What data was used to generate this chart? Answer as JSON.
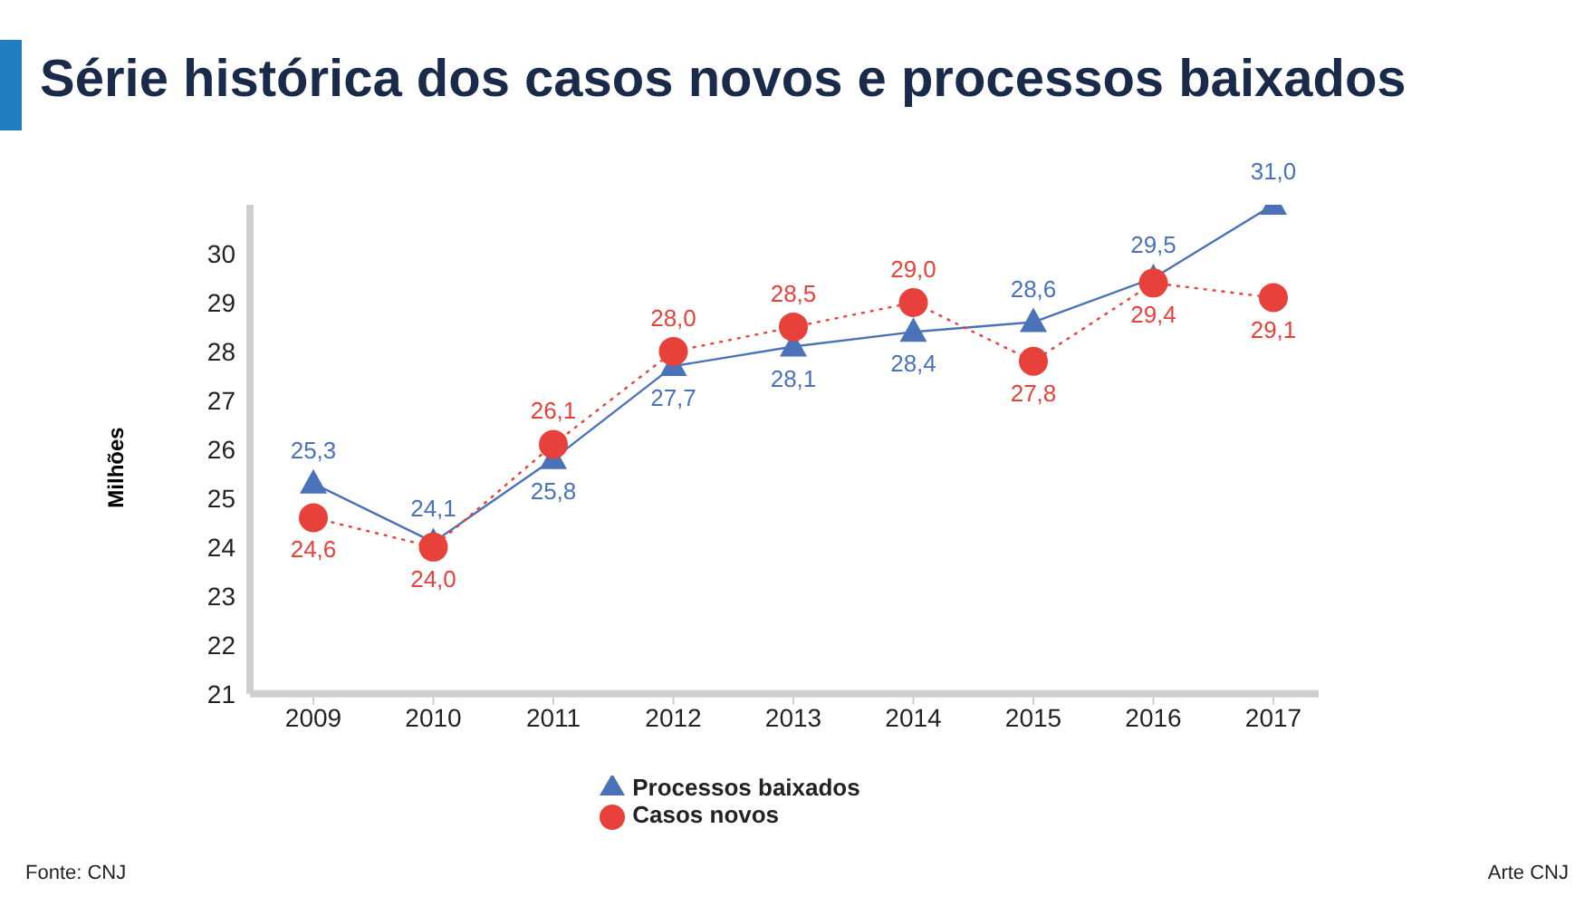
{
  "chart_data": {
    "type": "line",
    "title": "Série histórica dos casos novos e processos baixados",
    "ylabel": "Milhões",
    "categories": [
      "2009",
      "2010",
      "2011",
      "2012",
      "2013",
      "2014",
      "2015",
      "2016",
      "2017"
    ],
    "series": [
      {
        "name": "Processos baixados",
        "color": "#4a72b8",
        "marker": "triangle",
        "line_style": "solid",
        "values": [
          25.3,
          24.1,
          25.8,
          27.7,
          28.1,
          28.4,
          28.6,
          29.5,
          31.0
        ],
        "value_labels": [
          "25,3",
          "24,1",
          "25,8",
          "27,7",
          "28,1",
          "28,4",
          "28,6",
          "29,5",
          "31,0"
        ]
      },
      {
        "name": "Casos novos",
        "color": "#e8403a",
        "marker": "circle",
        "line_style": "dotted",
        "values": [
          24.6,
          24.0,
          26.1,
          28.0,
          28.5,
          29.0,
          27.8,
          29.4,
          29.1
        ],
        "value_labels": [
          "24,6",
          "24,0",
          "26,1",
          "28,0",
          "28,5",
          "29,0",
          "27,8",
          "29,4",
          "29,1"
        ]
      }
    ],
    "ylim": [
      21,
      31
    ],
    "yticks": [
      21,
      22,
      23,
      24,
      25,
      26,
      27,
      28,
      29,
      30
    ],
    "legend": "bottom",
    "annotations": [
      "Fonte: CNJ",
      "Arte CNJ"
    ]
  }
}
